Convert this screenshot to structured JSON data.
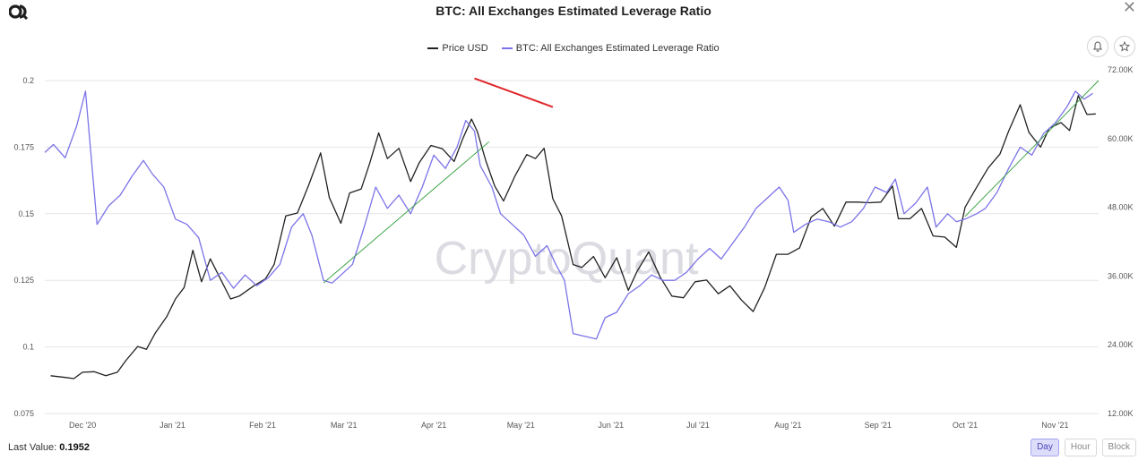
{
  "header": {
    "title": "BTC: All Exchanges Estimated Leverage Ratio",
    "close_symbol": "✕"
  },
  "legend": {
    "items": [
      {
        "label": "Price USD",
        "color": "#222222"
      },
      {
        "label": "BTC: All Exchanges Estimated Leverage Ratio",
        "color": "#7b73e8"
      }
    ]
  },
  "watermark": "CryptoQuant",
  "footer": {
    "last_value_label": "Last Value:",
    "last_value": "0.1952",
    "ranges": [
      {
        "label": "Day",
        "active": true
      },
      {
        "label": "Hour",
        "active": false
      },
      {
        "label": "Block",
        "active": false
      }
    ]
  },
  "colors": {
    "price": "#222222",
    "leverage": "#7b73e8",
    "trend_up": "#2f9e3a",
    "trend_down": "#e0262a",
    "grid": "#e6e6e6"
  },
  "icons": [
    "logo-icon",
    "bell-icon",
    "star-icon",
    "close-icon"
  ],
  "chart_data": {
    "type": "line",
    "title": "BTC: All Exchanges Estimated Leverage Ratio",
    "x_ticks": [
      "Dec '20",
      "Jan '21",
      "Feb '21",
      "Mar '21",
      "Apr '21",
      "May '21",
      "Jun '21",
      "Jul '21",
      "Aug '21",
      "Sep '21",
      "Oct '21",
      "Nov '21"
    ],
    "x_range": [
      "2020-11-18",
      "2021-11-16"
    ],
    "y_left": {
      "ticks": [
        "0.075",
        "0.1",
        "0.125",
        "0.15",
        "0.175",
        "0.2"
      ],
      "ylim": [
        0.075,
        0.2
      ]
    },
    "y_right": {
      "ticks": [
        "12.00K",
        "24.00K",
        "36.00K",
        "48.00K",
        "60.00K",
        "72.00K"
      ],
      "ylim": [
        12000,
        72000
      ]
    },
    "grid": "horizontal",
    "legend_position": "top-center",
    "series": [
      {
        "name": "Price USD",
        "axis": "right",
        "color": "#222222",
        "points": [
          [
            "2020-11-20",
            18600
          ],
          [
            "2020-11-25",
            18300
          ],
          [
            "2020-11-28",
            18100
          ],
          [
            "2020-12-01",
            19200
          ],
          [
            "2020-12-05",
            19300
          ],
          [
            "2020-12-09",
            18600
          ],
          [
            "2020-12-13",
            19200
          ],
          [
            "2020-12-16",
            21300
          ],
          [
            "2020-12-20",
            23700
          ],
          [
            "2020-12-23",
            23200
          ],
          [
            "2020-12-26",
            26000
          ],
          [
            "2020-12-30",
            28900
          ],
          [
            "2021-01-02",
            32000
          ],
          [
            "2021-01-05",
            34000
          ],
          [
            "2021-01-08",
            40500
          ],
          [
            "2021-01-11",
            35000
          ],
          [
            "2021-01-14",
            39000
          ],
          [
            "2021-01-17",
            36000
          ],
          [
            "2021-01-21",
            32000
          ],
          [
            "2021-01-24",
            32500
          ],
          [
            "2021-01-29",
            34300
          ],
          [
            "2021-02-02",
            35500
          ],
          [
            "2021-02-05",
            38000
          ],
          [
            "2021-02-09",
            46500
          ],
          [
            "2021-02-13",
            47000
          ],
          [
            "2021-02-17",
            52000
          ],
          [
            "2021-02-21",
            57500
          ],
          [
            "2021-02-24",
            49700
          ],
          [
            "2021-02-28",
            45200
          ],
          [
            "2021-03-03",
            50500
          ],
          [
            "2021-03-07",
            51200
          ],
          [
            "2021-03-10",
            55800
          ],
          [
            "2021-03-13",
            61000
          ],
          [
            "2021-03-16",
            56500
          ],
          [
            "2021-03-20",
            58300
          ],
          [
            "2021-03-24",
            52500
          ],
          [
            "2021-03-27",
            55800
          ],
          [
            "2021-03-31",
            58800
          ],
          [
            "2021-04-04",
            58200
          ],
          [
            "2021-04-08",
            56000
          ],
          [
            "2021-04-11",
            60000
          ],
          [
            "2021-04-14",
            63400
          ],
          [
            "2021-04-16",
            61200
          ],
          [
            "2021-04-19",
            56000
          ],
          [
            "2021-04-22",
            51700
          ],
          [
            "2021-04-25",
            49100
          ],
          [
            "2021-04-29",
            53500
          ],
          [
            "2021-05-03",
            57200
          ],
          [
            "2021-05-06",
            56500
          ],
          [
            "2021-05-09",
            58300
          ],
          [
            "2021-05-12",
            49500
          ],
          [
            "2021-05-15",
            46500
          ],
          [
            "2021-05-19",
            38000
          ],
          [
            "2021-05-22",
            37500
          ],
          [
            "2021-05-26",
            39400
          ],
          [
            "2021-05-30",
            35700
          ],
          [
            "2021-06-03",
            39200
          ],
          [
            "2021-06-07",
            33500
          ],
          [
            "2021-06-10",
            36800
          ],
          [
            "2021-06-14",
            40200
          ],
          [
            "2021-06-18",
            35800
          ],
          [
            "2021-06-22",
            32500
          ],
          [
            "2021-06-26",
            32200
          ],
          [
            "2021-06-30",
            35000
          ],
          [
            "2021-07-04",
            35300
          ],
          [
            "2021-07-08",
            32900
          ],
          [
            "2021-07-12",
            34300
          ],
          [
            "2021-07-16",
            31800
          ],
          [
            "2021-07-20",
            29800
          ],
          [
            "2021-07-24",
            34000
          ],
          [
            "2021-07-28",
            39800
          ],
          [
            "2021-08-01",
            39800
          ],
          [
            "2021-08-05",
            40900
          ],
          [
            "2021-08-09",
            46300
          ],
          [
            "2021-08-13",
            47800
          ],
          [
            "2021-08-17",
            44700
          ],
          [
            "2021-08-21",
            48900
          ],
          [
            "2021-08-25",
            48900
          ],
          [
            "2021-08-29",
            48800
          ],
          [
            "2021-09-02",
            48900
          ],
          [
            "2021-09-06",
            51700
          ],
          [
            "2021-09-08",
            46000
          ],
          [
            "2021-09-12",
            46000
          ],
          [
            "2021-09-16",
            47800
          ],
          [
            "2021-09-20",
            43000
          ],
          [
            "2021-09-24",
            42800
          ],
          [
            "2021-09-28",
            41000
          ],
          [
            "2021-10-01",
            48000
          ],
          [
            "2021-10-05",
            51500
          ],
          [
            "2021-10-09",
            54900
          ],
          [
            "2021-10-13",
            57300
          ],
          [
            "2021-10-16",
            61300
          ],
          [
            "2021-10-20",
            65900
          ],
          [
            "2021-10-23",
            61100
          ],
          [
            "2021-10-27",
            58500
          ],
          [
            "2021-10-30",
            61800
          ],
          [
            "2021-11-03",
            62800
          ],
          [
            "2021-11-06",
            61400
          ],
          [
            "2021-11-09",
            67500
          ],
          [
            "2021-11-12",
            64200
          ],
          [
            "2021-11-15",
            64300
          ]
        ]
      },
      {
        "name": "BTC: All Exchanges Estimated Leverage Ratio",
        "axis": "left",
        "color": "#7b73e8",
        "points": [
          [
            "2020-11-18",
            0.173
          ],
          [
            "2020-11-21",
            0.176
          ],
          [
            "2020-11-25",
            0.171
          ],
          [
            "2020-11-29",
            0.183
          ],
          [
            "2020-12-02",
            0.196
          ],
          [
            "2020-12-06",
            0.146
          ],
          [
            "2020-12-10",
            0.153
          ],
          [
            "2020-12-14",
            0.157
          ],
          [
            "2020-12-18",
            0.164
          ],
          [
            "2020-12-22",
            0.17
          ],
          [
            "2020-12-25",
            0.165
          ],
          [
            "2020-12-29",
            0.16
          ],
          [
            "2021-01-02",
            0.148
          ],
          [
            "2021-01-06",
            0.146
          ],
          [
            "2021-01-10",
            0.141
          ],
          [
            "2021-01-14",
            0.125
          ],
          [
            "2021-01-18",
            0.128
          ],
          [
            "2021-01-22",
            0.122
          ],
          [
            "2021-01-26",
            0.127
          ],
          [
            "2021-01-30",
            0.123
          ],
          [
            "2021-02-03",
            0.126
          ],
          [
            "2021-02-07",
            0.131
          ],
          [
            "2021-02-11",
            0.145
          ],
          [
            "2021-02-15",
            0.15
          ],
          [
            "2021-02-18",
            0.142
          ],
          [
            "2021-02-22",
            0.125
          ],
          [
            "2021-02-25",
            0.124
          ],
          [
            "2021-03-01",
            0.128
          ],
          [
            "2021-03-04",
            0.131
          ],
          [
            "2021-03-08",
            0.145
          ],
          [
            "2021-03-12",
            0.16
          ],
          [
            "2021-03-16",
            0.152
          ],
          [
            "2021-03-20",
            0.157
          ],
          [
            "2021-03-24",
            0.15
          ],
          [
            "2021-03-28",
            0.16
          ],
          [
            "2021-04-01",
            0.172
          ],
          [
            "2021-04-05",
            0.167
          ],
          [
            "2021-04-09",
            0.175
          ],
          [
            "2021-04-12",
            0.185
          ],
          [
            "2021-04-15",
            0.181
          ],
          [
            "2021-04-17",
            0.168
          ],
          [
            "2021-04-21",
            0.16
          ],
          [
            "2021-04-24",
            0.15
          ],
          [
            "2021-04-28",
            0.146
          ],
          [
            "2021-05-02",
            0.142
          ],
          [
            "2021-05-06",
            0.134
          ],
          [
            "2021-05-10",
            0.138
          ],
          [
            "2021-05-13",
            0.131
          ],
          [
            "2021-05-16",
            0.125
          ],
          [
            "2021-05-19",
            0.105
          ],
          [
            "2021-05-23",
            0.104
          ],
          [
            "2021-05-27",
            0.103
          ],
          [
            "2021-05-30",
            0.111
          ],
          [
            "2021-06-03",
            0.113
          ],
          [
            "2021-06-07",
            0.12
          ],
          [
            "2021-06-11",
            0.123
          ],
          [
            "2021-06-15",
            0.127
          ],
          [
            "2021-06-19",
            0.125
          ],
          [
            "2021-06-23",
            0.125
          ],
          [
            "2021-06-27",
            0.128
          ],
          [
            "2021-07-01",
            0.133
          ],
          [
            "2021-07-05",
            0.137
          ],
          [
            "2021-07-09",
            0.133
          ],
          [
            "2021-07-13",
            0.139
          ],
          [
            "2021-07-17",
            0.145
          ],
          [
            "2021-07-21",
            0.152
          ],
          [
            "2021-07-25",
            0.156
          ],
          [
            "2021-07-29",
            0.16
          ],
          [
            "2021-08-01",
            0.155
          ],
          [
            "2021-08-03",
            0.143
          ],
          [
            "2021-08-07",
            0.146
          ],
          [
            "2021-08-11",
            0.148
          ],
          [
            "2021-08-15",
            0.147
          ],
          [
            "2021-08-19",
            0.145
          ],
          [
            "2021-08-23",
            0.147
          ],
          [
            "2021-08-27",
            0.152
          ],
          [
            "2021-08-31",
            0.16
          ],
          [
            "2021-09-04",
            0.158
          ],
          [
            "2021-09-07",
            0.163
          ],
          [
            "2021-09-10",
            0.15
          ],
          [
            "2021-09-14",
            0.154
          ],
          [
            "2021-09-18",
            0.16
          ],
          [
            "2021-09-21",
            0.145
          ],
          [
            "2021-09-25",
            0.15
          ],
          [
            "2021-09-28",
            0.147
          ],
          [
            "2021-10-01",
            0.148
          ],
          [
            "2021-10-05",
            0.15
          ],
          [
            "2021-10-08",
            0.152
          ],
          [
            "2021-10-12",
            0.158
          ],
          [
            "2021-10-16",
            0.167
          ],
          [
            "2021-10-20",
            0.175
          ],
          [
            "2021-10-24",
            0.172
          ],
          [
            "2021-10-28",
            0.18
          ],
          [
            "2021-11-01",
            0.184
          ],
          [
            "2021-11-05",
            0.19
          ],
          [
            "2021-11-08",
            0.196
          ],
          [
            "2021-11-11",
            0.193
          ],
          [
            "2021-11-14",
            0.1952
          ]
        ]
      }
    ],
    "annotations": [
      {
        "type": "trendline",
        "color": "#2f9e3a",
        "axis": "left",
        "from": [
          "2021-02-22",
          0.124
        ],
        "to": [
          "2021-04-20",
          0.177
        ]
      },
      {
        "type": "trendline",
        "color": "#e0262a",
        "axis": "right",
        "from": [
          "2021-04-15",
          70500
        ],
        "to": [
          "2021-05-12",
          65500
        ]
      },
      {
        "type": "trendline",
        "color": "#2f9e3a",
        "axis": "left",
        "from": [
          "2021-10-01",
          0.149
        ],
        "to": [
          "2021-11-16",
          0.2
        ]
      }
    ]
  }
}
